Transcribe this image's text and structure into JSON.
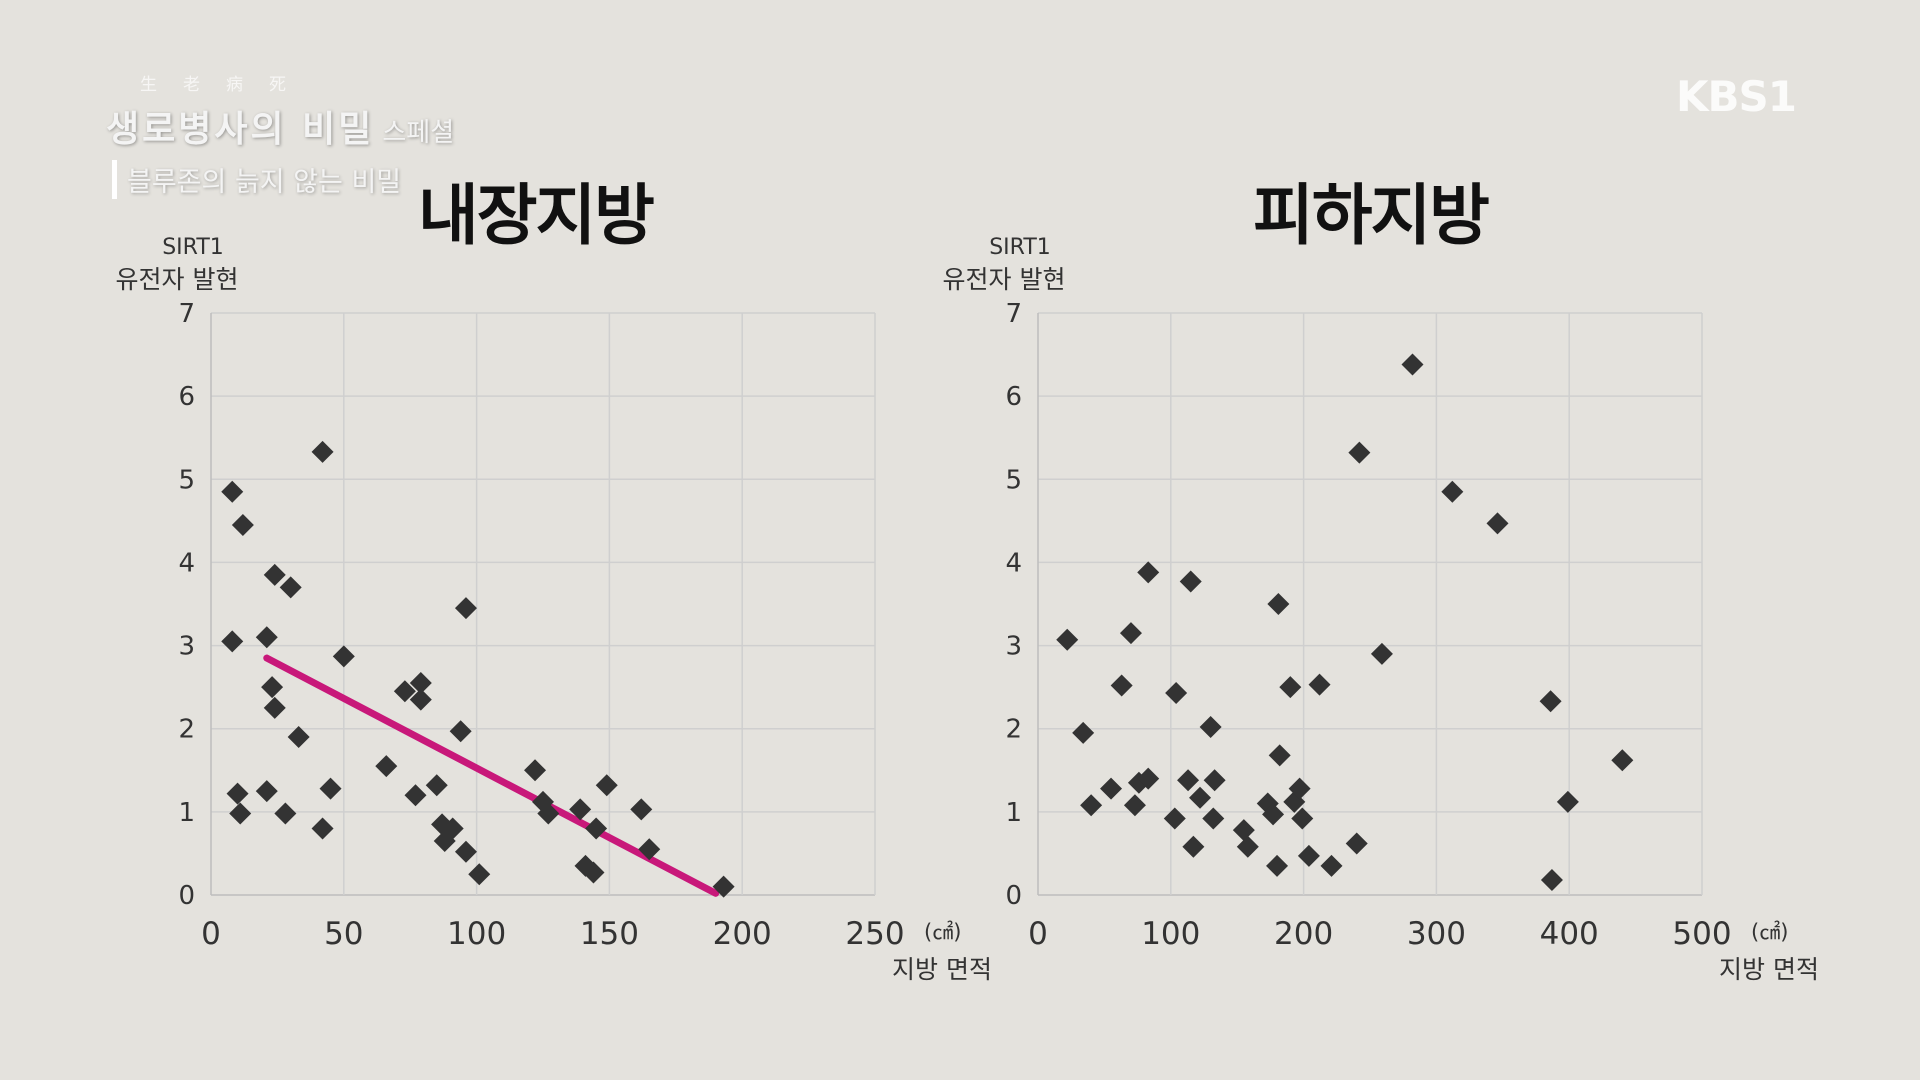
{
  "overlay": {
    "hanja": "生老病死",
    "show_title": "생로병사의 비밀",
    "show_special": "스페셜",
    "subtitle": "블루존의 늙지 않는 비밀",
    "logo": "KBS1"
  },
  "colors": {
    "background": "#e4e2dd",
    "grid": "#cfcfcf",
    "axis": "#bdbdbd",
    "marker": "#333333",
    "trendline": "#c8187a"
  },
  "chart_data": [
    {
      "type": "scatter",
      "title": "내장지방",
      "ylabel_line1": "SIRT1",
      "ylabel_line2": "유전자 발현",
      "xlabel": "지방 면적",
      "x_unit": "(㎠)",
      "xlim": [
        0,
        250
      ],
      "ylim": [
        0,
        7
      ],
      "xticks": [
        "0",
        "50",
        "100",
        "150",
        "200",
        "250"
      ],
      "yticks": [
        "0",
        "1",
        "2",
        "3",
        "4",
        "5",
        "6",
        "7"
      ],
      "grid": true,
      "marker": "diamond",
      "trendline": {
        "from": [
          21,
          2.85
        ],
        "to": [
          190,
          0.02
        ]
      },
      "points": [
        [
          8,
          4.85
        ],
        [
          12,
          4.45
        ],
        [
          8,
          3.05
        ],
        [
          24,
          3.85
        ],
        [
          30,
          3.7
        ],
        [
          21,
          3.1
        ],
        [
          42,
          5.33
        ],
        [
          23,
          2.5
        ],
        [
          24,
          2.25
        ],
        [
          33,
          1.9
        ],
        [
          10,
          1.22
        ],
        [
          11,
          0.98
        ],
        [
          21,
          1.25
        ],
        [
          28,
          0.98
        ],
        [
          42,
          0.8
        ],
        [
          45,
          1.28
        ],
        [
          50,
          2.87
        ],
        [
          66,
          1.55
        ],
        [
          73,
          2.45
        ],
        [
          79,
          2.55
        ],
        [
          79,
          2.35
        ],
        [
          77,
          1.2
        ],
        [
          85,
          1.32
        ],
        [
          87,
          0.85
        ],
        [
          88,
          0.65
        ],
        [
          91,
          0.8
        ],
        [
          96,
          3.45
        ],
        [
          94,
          1.97
        ],
        [
          96,
          0.52
        ],
        [
          101,
          0.25
        ],
        [
          122,
          1.5
        ],
        [
          125,
          1.12
        ],
        [
          127,
          0.98
        ],
        [
          139,
          1.03
        ],
        [
          141,
          0.35
        ],
        [
          144,
          0.27
        ],
        [
          145,
          0.8
        ],
        [
          149,
          1.32
        ],
        [
          162,
          1.03
        ],
        [
          165,
          0.55
        ],
        [
          193,
          0.1
        ]
      ]
    },
    {
      "type": "scatter",
      "title": "피하지방",
      "ylabel_line1": "SIRT1",
      "ylabel_line2": "유전자 발현",
      "xlabel": "지방 면적",
      "x_unit": "(㎠)",
      "xlim": [
        0,
        500
      ],
      "ylim": [
        0,
        7
      ],
      "xticks": [
        "0",
        "100",
        "200",
        "300",
        "400",
        "500"
      ],
      "yticks": [
        "0",
        "1",
        "2",
        "3",
        "4",
        "5",
        "6",
        "7"
      ],
      "grid": true,
      "marker": "diamond",
      "points": [
        [
          22,
          3.07
        ],
        [
          34,
          1.95
        ],
        [
          40,
          1.08
        ],
        [
          55,
          1.28
        ],
        [
          63,
          2.52
        ],
        [
          70,
          3.15
        ],
        [
          73,
          1.08
        ],
        [
          76,
          1.35
        ],
        [
          83,
          1.4
        ],
        [
          83,
          3.88
        ],
        [
          103,
          0.92
        ],
        [
          104,
          2.43
        ],
        [
          113,
          1.38
        ],
        [
          115,
          3.77
        ],
        [
          117,
          0.58
        ],
        [
          122,
          1.17
        ],
        [
          130,
          2.02
        ],
        [
          132,
          0.92
        ],
        [
          133,
          1.38
        ],
        [
          155,
          0.78
        ],
        [
          158,
          0.58
        ],
        [
          173,
          1.1
        ],
        [
          177,
          0.97
        ],
        [
          180,
          0.35
        ],
        [
          181,
          3.5
        ],
        [
          182,
          1.68
        ],
        [
          190,
          2.5
        ],
        [
          193,
          1.12
        ],
        [
          197,
          1.28
        ],
        [
          199,
          0.92
        ],
        [
          204,
          0.47
        ],
        [
          212,
          2.53
        ],
        [
          221,
          0.35
        ],
        [
          240,
          0.62
        ],
        [
          242,
          5.32
        ],
        [
          259,
          2.9
        ],
        [
          282,
          6.38
        ],
        [
          312,
          4.85
        ],
        [
          346,
          4.47
        ],
        [
          386,
          2.33
        ],
        [
          387,
          0.18
        ],
        [
          399,
          1.12
        ],
        [
          440,
          1.62
        ]
      ]
    }
  ]
}
